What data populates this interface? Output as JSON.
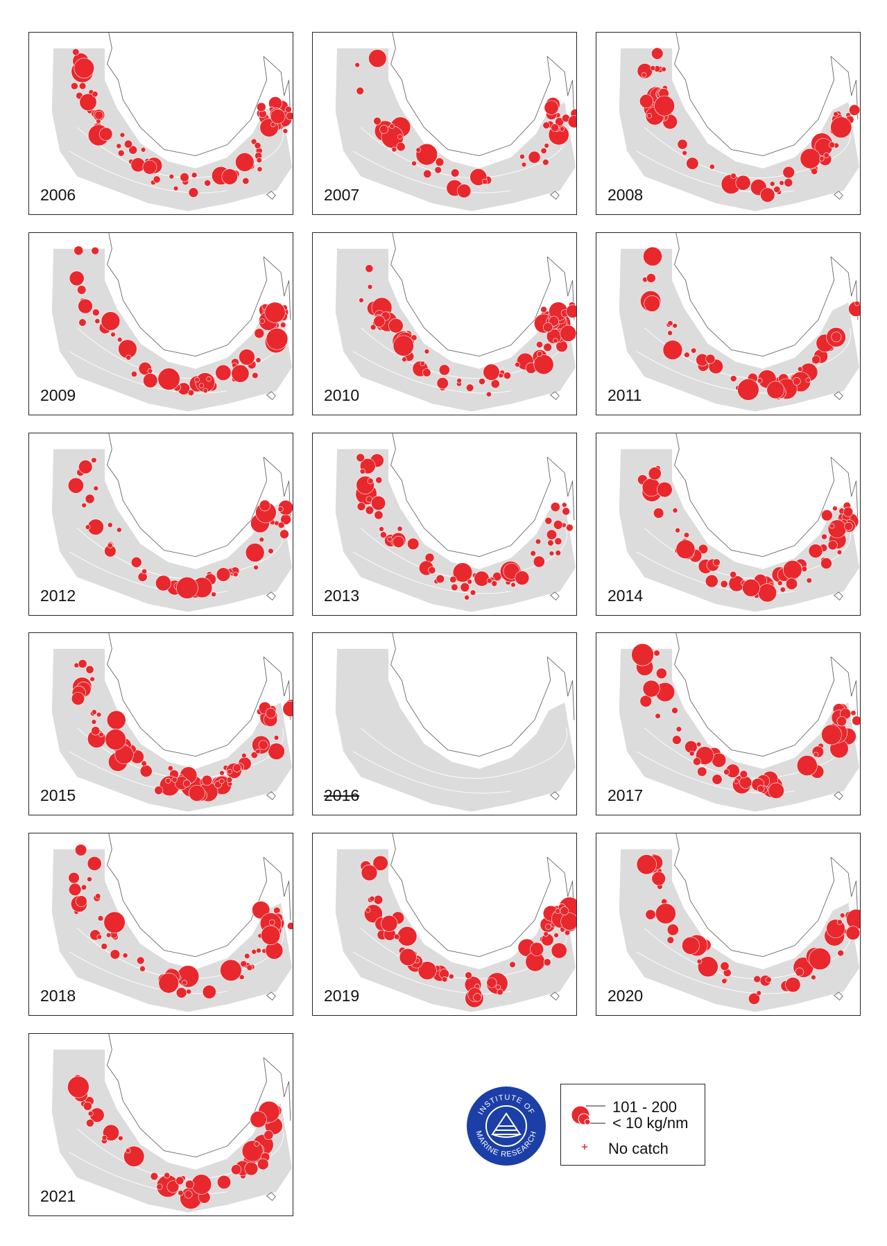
{
  "panels": [
    {
      "year": "2006"
    },
    {
      "year": "2007"
    },
    {
      "year": "2008"
    },
    {
      "year": "2009"
    },
    {
      "year": "2010"
    },
    {
      "year": "2011"
    },
    {
      "year": "2012"
    },
    {
      "year": "2013"
    },
    {
      "year": "2014"
    },
    {
      "year": "2015"
    },
    {
      "year": "2016",
      "struck": true
    },
    {
      "year": "2017"
    },
    {
      "year": "2018"
    },
    {
      "year": "2019"
    },
    {
      "year": "2020"
    },
    {
      "year": "2021"
    }
  ],
  "legend": {
    "large": "101 - 200",
    "small": "< 10 kg/nm",
    "none": "No catch"
  },
  "logo": {
    "top": "INSTITUTE OF",
    "bottom": "MARINE RESEARCH"
  }
}
